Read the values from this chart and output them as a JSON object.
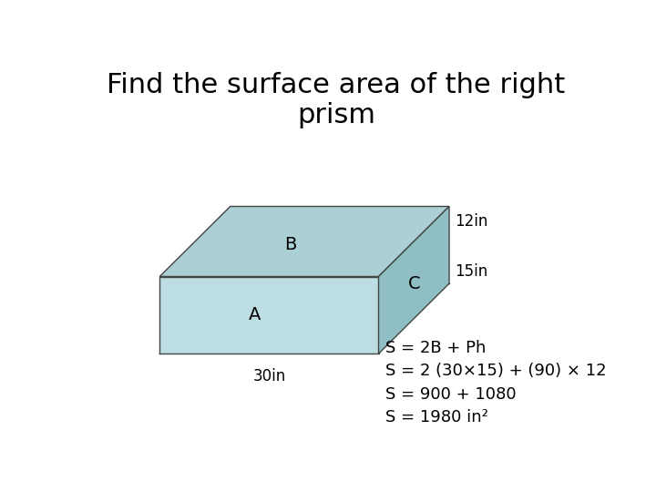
{
  "title": "Find the surface area of the right\nprism",
  "title_fontsize": 22,
  "title_fontweight": "normal",
  "background_color": "#ffffff",
  "prism_color_top": "#aacfd4",
  "prism_color_front": "#bcdee2",
  "prism_color_right": "#8fbfc5",
  "prism_edge_color": "#444444",
  "label_B": "B",
  "label_A": "A",
  "label_C": "C",
  "label_12in": "12in",
  "label_15in": "15in",
  "label_30in": "30in",
  "formula_lines": [
    "S = 2B + Ph",
    "S = 2 (30×15) + (90) × 12",
    "S = 900 + 1080",
    "S = 1980 in²"
  ],
  "formula_fontsize": 13,
  "label_fontsize": 14,
  "dim_fontsize": 12
}
